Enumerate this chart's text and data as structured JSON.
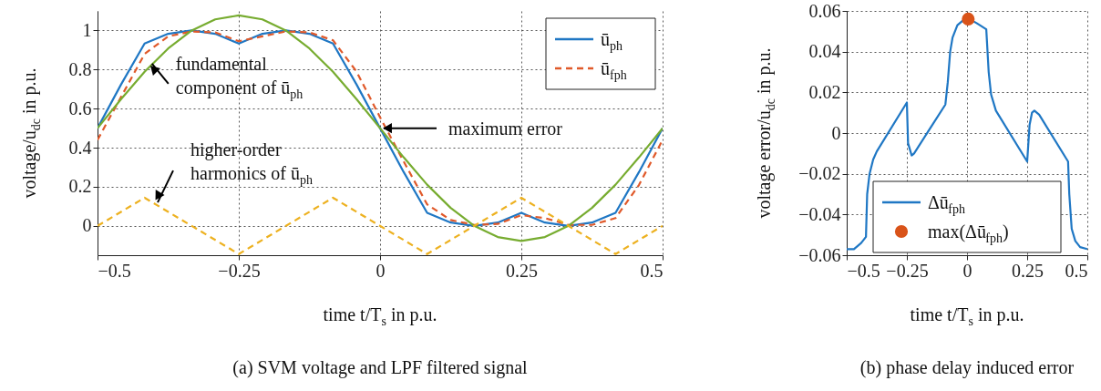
{
  "chart_data": [
    {
      "type": "line",
      "xlabel": "time t/T$_{s}$ in p.u.",
      "ylabel": "voltage/u$_{dc}$ in p.u.",
      "xlim": [
        -0.5,
        0.5
      ],
      "ylim": [
        -0.15,
        1.1
      ],
      "xticks": [
        -0.5,
        -0.25,
        0,
        0.25,
        0.5
      ],
      "yticks": [
        0,
        0.2,
        0.4,
        0.6,
        0.8,
        1
      ],
      "grid": true,
      "legend": "top right",
      "annotations": [
        {
          "text": "fundamental\ncomponent of ū$_{ph}$",
          "x": -0.41,
          "y": 0.83
        },
        {
          "text": "maximum error",
          "x": 0,
          "y": 0.5
        },
        {
          "text": "higher-order\nharmonics of ū$_{ph}$",
          "x": -0.4,
          "y": 0.12
        },
        "(a) SVM voltage and LPF filtered signal"
      ],
      "series": [
        {
          "name": "ū$_{ph}$",
          "color": "#1f77c4",
          "line_style": "solid",
          "x": [
            -0.5,
            -0.4583,
            -0.4167,
            -0.375,
            -0.3333,
            -0.2917,
            -0.25,
            -0.2083,
            -0.1667,
            -0.125,
            -0.0833,
            -0.0417,
            0,
            0.0417,
            0.0833,
            0.125,
            0.1667,
            0.2083,
            0.25,
            0.2917,
            0.3333,
            0.375,
            0.4167,
            0.4583,
            0.5
          ],
          "values": [
            0.5,
            0.724,
            0.933,
            0.983,
            1.0,
            0.983,
            0.933,
            0.983,
            1.0,
            0.983,
            0.933,
            0.724,
            0.5,
            0.276,
            0.067,
            0.017,
            0.0,
            0.017,
            0.067,
            0.017,
            0.0,
            0.017,
            0.067,
            0.276,
            0.5
          ]
        },
        {
          "name": "ū$_{fph}$",
          "color": "#e0592a",
          "line_style": "dashed",
          "x": [
            -0.5,
            -0.4583,
            -0.4167,
            -0.375,
            -0.3333,
            -0.2917,
            -0.25,
            -0.2083,
            -0.1667,
            -0.125,
            -0.0833,
            -0.0417,
            0,
            0.0417,
            0.0833,
            0.125,
            0.1667,
            0.2083,
            0.25,
            0.2917,
            0.3333,
            0.375,
            0.4167,
            0.4583,
            0.5
          ],
          "values": [
            0.44,
            0.66,
            0.88,
            0.97,
            0.995,
            0.99,
            0.945,
            0.97,
            0.995,
            0.99,
            0.95,
            0.79,
            0.556,
            0.33,
            0.11,
            0.03,
            0.005,
            0.01,
            0.055,
            0.04,
            0.005,
            0.005,
            0.04,
            0.21,
            0.44
          ]
        },
        {
          "color": "#77ac30",
          "line_style": "solid",
          "x": [
            -0.5,
            -0.4583,
            -0.4167,
            -0.375,
            -0.3333,
            -0.2917,
            -0.25,
            -0.2083,
            -0.1667,
            -0.125,
            -0.0833,
            -0.0417,
            0,
            0.0417,
            0.0833,
            0.125,
            0.1667,
            0.2083,
            0.25,
            0.2917,
            0.3333,
            0.375,
            0.4167,
            0.4583,
            0.5
          ],
          "values": [
            0.5,
            0.649,
            0.789,
            0.908,
            1.0,
            1.057,
            1.077,
            1.057,
            1.0,
            0.908,
            0.789,
            0.649,
            0.5,
            0.351,
            0.211,
            0.092,
            0.0,
            -0.057,
            -0.077,
            -0.057,
            0.0,
            0.092,
            0.211,
            0.351,
            0.5
          ]
        },
        {
          "color": "#edb120",
          "line_style": "dashed",
          "x": [
            -0.5,
            -0.4167,
            -0.25,
            -0.0833,
            0.0833,
            0.25,
            0.4167,
            0.5
          ],
          "values": [
            0,
            0.144,
            -0.144,
            0.144,
            -0.144,
            0.144,
            -0.144,
            0
          ]
        }
      ]
    },
    {
      "type": "line",
      "xlabel": "time t/T$_{s}$ in p.u.",
      "ylabel": "voltage error/u$_{dc}$ in p.u.",
      "xlim": [
        -0.5,
        0.5
      ],
      "ylim": [
        -0.06,
        0.06
      ],
      "xticks": [
        -0.5,
        -0.25,
        0,
        0.25,
        0.5
      ],
      "yticks": [
        -0.06,
        -0.04,
        -0.02,
        0,
        0.02,
        0.04,
        0.06
      ],
      "grid": true,
      "legend": "bottom",
      "annotations": [
        "(b) phase delay induced error"
      ],
      "series": [
        {
          "name": "Δū$_{fph}$",
          "color": "#1f77c4",
          "line_style": "solid",
          "x": [
            -0.5,
            -0.47,
            -0.44,
            -0.42,
            -0.415,
            -0.405,
            -0.39,
            -0.375,
            -0.25,
            -0.245,
            -0.23,
            -0.22,
            -0.09,
            -0.08,
            -0.07,
            -0.06,
            -0.04,
            -0.02,
            0.01,
            0.04,
            0.08,
            0.09,
            0.1,
            0.12,
            0.25,
            0.26,
            0.27,
            0.28,
            0.3,
            0.42,
            0.425,
            0.435,
            0.45,
            0.47,
            0.5
          ],
          "values": [
            -0.057,
            -0.057,
            -0.054,
            -0.051,
            -0.03,
            -0.02,
            -0.013,
            -0.009,
            0.015,
            -0.005,
            -0.011,
            -0.01,
            0.014,
            0.025,
            0.04,
            0.047,
            0.053,
            0.055,
            0.056,
            0.054,
            0.051,
            0.03,
            0.019,
            0.011,
            -0.014,
            0.004,
            0.01,
            0.011,
            0.009,
            -0.014,
            -0.03,
            -0.047,
            -0.053,
            -0.056,
            -0.057
          ]
        },
        {
          "name": "max(Δū$_{fph}$)",
          "type": "scatter",
          "marker": "circle",
          "color": "#d95319",
          "x": [
            0.005
          ],
          "values": [
            0.056
          ]
        }
      ]
    }
  ]
}
